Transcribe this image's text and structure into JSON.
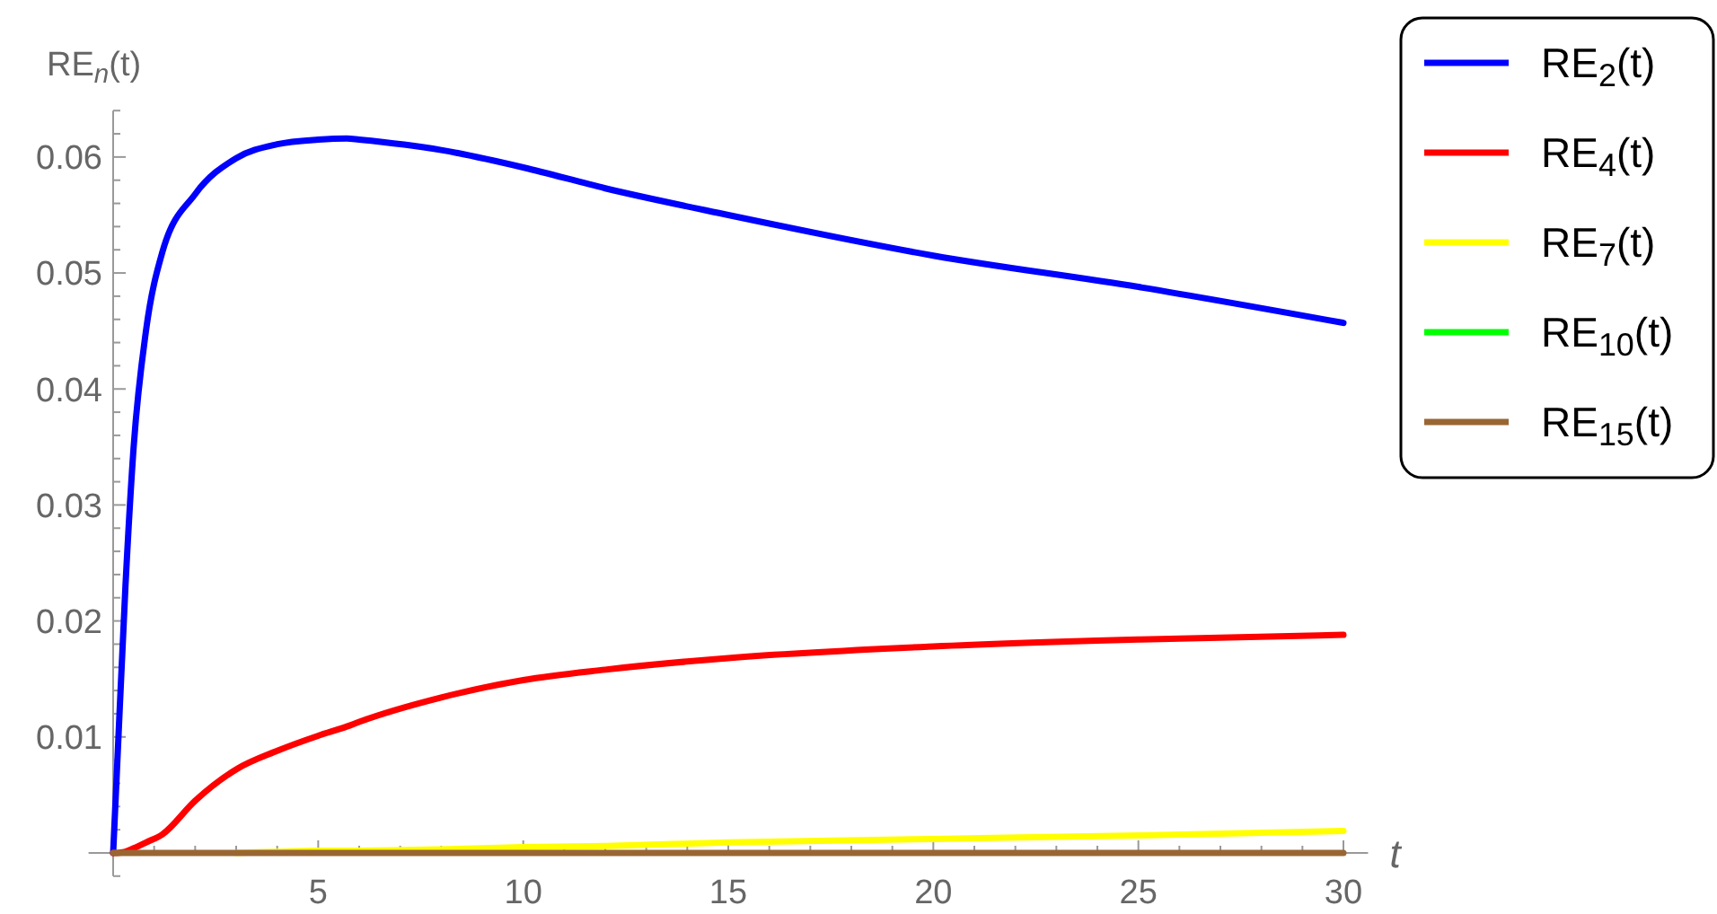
{
  "chart_data": {
    "type": "line",
    "ylabel": "RE$_{n}$(t)",
    "xlabel": "t",
    "legend": "top right",
    "grid": false,
    "marker": "none",
    "line_style": "solid",
    "xlim": [
      -0.6,
      30.6
    ],
    "ylim": [
      -0.002,
      0.064
    ],
    "xticks": [
      {
        "value": 1,
        "label": null
      },
      {
        "value": 2,
        "label": null
      },
      {
        "value": 3,
        "label": null
      },
      {
        "value": 4,
        "label": null
      },
      5,
      {
        "value": 6,
        "label": null
      },
      {
        "value": 7,
        "label": null
      },
      {
        "value": 8,
        "label": null
      },
      {
        "value": 9,
        "label": null
      },
      10,
      {
        "value": 11,
        "label": null
      },
      {
        "value": 12,
        "label": null
      },
      {
        "value": 13,
        "label": null
      },
      {
        "value": 14,
        "label": null
      },
      15,
      {
        "value": 16,
        "label": null
      },
      {
        "value": 17,
        "label": null
      },
      {
        "value": 18,
        "label": null
      },
      {
        "value": 19,
        "label": null
      },
      20,
      {
        "value": 21,
        "label": null
      },
      {
        "value": 22,
        "label": null
      },
      {
        "value": 23,
        "label": null
      },
      {
        "value": 24,
        "label": null
      },
      25,
      {
        "value": 26,
        "label": null
      },
      {
        "value": 27,
        "label": null
      },
      {
        "value": 28,
        "label": null
      },
      {
        "value": 29,
        "label": null
      },
      30
    ],
    "yticks": [
      {
        "value": -0.002,
        "label": null
      },
      {
        "value": 0.002,
        "label": null
      },
      {
        "value": 0.004,
        "label": null
      },
      {
        "value": 0.006,
        "label": null
      },
      {
        "value": 0.008,
        "label": null
      },
      0.01,
      {
        "value": 0.012,
        "label": null
      },
      {
        "value": 0.014,
        "label": null
      },
      {
        "value": 0.016,
        "label": null
      },
      {
        "value": 0.018,
        "label": null
      },
      0.02,
      {
        "value": 0.022,
        "label": null
      },
      {
        "value": 0.024,
        "label": null
      },
      {
        "value": 0.026,
        "label": null
      },
      {
        "value": 0.028,
        "label": null
      },
      0.03,
      {
        "value": 0.032,
        "label": null
      },
      {
        "value": 0.034,
        "label": null
      },
      {
        "value": 0.036,
        "label": null
      },
      {
        "value": 0.038,
        "label": null
      },
      0.04,
      {
        "value": 0.042,
        "label": null
      },
      {
        "value": 0.044,
        "label": null
      },
      {
        "value": 0.046,
        "label": null
      },
      {
        "value": 0.048,
        "label": null
      },
      0.05,
      {
        "value": 0.052,
        "label": null
      },
      {
        "value": 0.054,
        "label": null
      },
      {
        "value": 0.056,
        "label": null
      },
      {
        "value": 0.058,
        "label": null
      },
      0.06,
      {
        "value": 0.062,
        "label": null
      },
      {
        "value": 0.064,
        "label": null
      }
    ],
    "x": [
      0,
      0.1,
      0.3,
      0.5,
      0.8,
      1.2,
      2,
      3,
      4,
      5,
      5.7,
      6,
      8,
      10,
      12,
      15,
      20,
      25,
      30
    ],
    "series": [
      {
        "name": "RE$_{2}$(t)",
        "color": "#0000ff",
        "values": [
          0,
          0.0077,
          0.023,
          0.035,
          0.045,
          0.0518,
          0.0568,
          0.0599,
          0.0611,
          0.0615,
          0.0616,
          0.0615,
          0.0606,
          0.0591,
          0.0573,
          0.055,
          0.0515,
          0.0488,
          0.0457
        ]
      },
      {
        "name": "RE$_{4}$(t)",
        "color": "#ff0000",
        "values": [
          0,
          0,
          0.0001,
          0.0004,
          0.0009,
          0.0016,
          0.0045,
          0.0072,
          0.0088,
          0.0101,
          0.0109,
          0.0113,
          0.0134,
          0.0149,
          0.0158,
          0.0168,
          0.0178,
          0.0184,
          0.0188
        ]
      },
      {
        "name": "RE$_{7}$(t)",
        "color": "#ffff00",
        "values": [
          null,
          null,
          null,
          null,
          null,
          null,
          null,
          0,
          0.0001,
          0.0002,
          0.0002,
          0.0002,
          0.0003,
          0.0005,
          0.0006,
          0.0009,
          0.0012,
          0.0015,
          0.0019
        ]
      },
      {
        "name": "RE$_{10}$(t)",
        "color": "#00ff00",
        "values": [
          null,
          null,
          null,
          null,
          null,
          null,
          null,
          null,
          null,
          null,
          null,
          null,
          null,
          null,
          null,
          null,
          null,
          null,
          null
        ]
      },
      {
        "name": "RE$_{15}$(t)",
        "color": "#996633",
        "values": [
          0,
          0,
          0,
          0,
          0,
          0,
          0,
          0,
          0,
          0,
          0,
          0,
          0,
          0,
          0,
          0,
          0,
          0,
          0
        ]
      }
    ]
  }
}
